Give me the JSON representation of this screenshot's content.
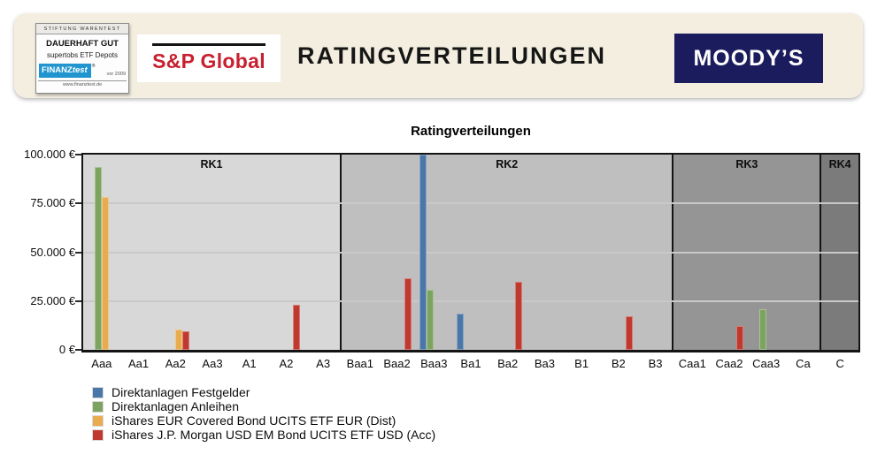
{
  "header": {
    "badge": {
      "top": "STIFTUNG WARENTEST",
      "line1": "DAUERHAFT GUT",
      "line2": "supertobs ETF Depots",
      "logo_bold": "FINANZ",
      "logo_italic": "test",
      "reg": "®",
      "year": "vor 2009",
      "url": "www.finanztest.de"
    },
    "sp_logo": "S&P Global",
    "title": "RATINGVERTEILUNGEN",
    "moodys_logo": "MOODY’S"
  },
  "chart_data": {
    "type": "bar",
    "title": "Ratingverteilungen",
    "categories": [
      "Aaa",
      "Aa1",
      "Aa2",
      "Aa3",
      "A1",
      "A2",
      "A3",
      "Baa1",
      "Baa2",
      "Baa3",
      "Ba1",
      "Ba2",
      "Ba3",
      "B1",
      "B2",
      "B3",
      "Caa1",
      "Caa2",
      "Caa3",
      "Ca",
      "C"
    ],
    "series": [
      {
        "name": "Direktanlagen Festgelder",
        "color": "#4a76a8",
        "values": [
          0,
          0,
          0,
          0,
          0,
          0,
          0,
          0,
          0,
          100000,
          18500,
          0,
          0,
          0,
          0,
          0,
          0,
          0,
          0,
          0,
          0
        ]
      },
      {
        "name": "Direktanlagen Anleihen",
        "color": "#7ca45f",
        "values": [
          93500,
          0,
          0,
          0,
          0,
          0,
          0,
          0,
          0,
          31000,
          0,
          0,
          0,
          0,
          0,
          0,
          0,
          0,
          21000,
          0,
          0
        ]
      },
      {
        "name": "iShares EUR Covered Bond UCITS ETF EUR (Dist)",
        "color": "#e8ac4e",
        "values": [
          78500,
          0,
          10500,
          0,
          0,
          0,
          0,
          0,
          0,
          0,
          0,
          0,
          0,
          0,
          0,
          0,
          0,
          0,
          0,
          0,
          0
        ]
      },
      {
        "name": "iShares J.P. Morgan USD EM Bond UCITS ETF USD (Acc)",
        "color": "#c0392f",
        "values": [
          0,
          0,
          9500,
          0,
          0,
          23000,
          0,
          0,
          36500,
          0,
          0,
          35000,
          0,
          0,
          17000,
          0,
          0,
          12000,
          0,
          0,
          0
        ]
      }
    ],
    "regions": [
      {
        "label": "RK1",
        "from": 0,
        "to": 6,
        "color": "#d8d8d8"
      },
      {
        "label": "RK2",
        "from": 7,
        "to": 15,
        "color": "#bfbfbf"
      },
      {
        "label": "RK3",
        "from": 16,
        "to": 19,
        "color": "#959595"
      },
      {
        "label": "RK4",
        "from": 20,
        "to": 20,
        "color": "#7b7b7b"
      }
    ],
    "ylim": [
      0,
      100000
    ],
    "yticks": [
      {
        "value": 0,
        "label": "0 €"
      },
      {
        "value": 25000,
        "label": "25.000 €"
      },
      {
        "value": 50000,
        "label": "50.000 €"
      },
      {
        "value": 75000,
        "label": "75.000 €"
      },
      {
        "value": 100000,
        "label": "100.000 €"
      }
    ],
    "xlabel": "",
    "ylabel": "",
    "grid": true,
    "legend_position": "bottom-left"
  }
}
